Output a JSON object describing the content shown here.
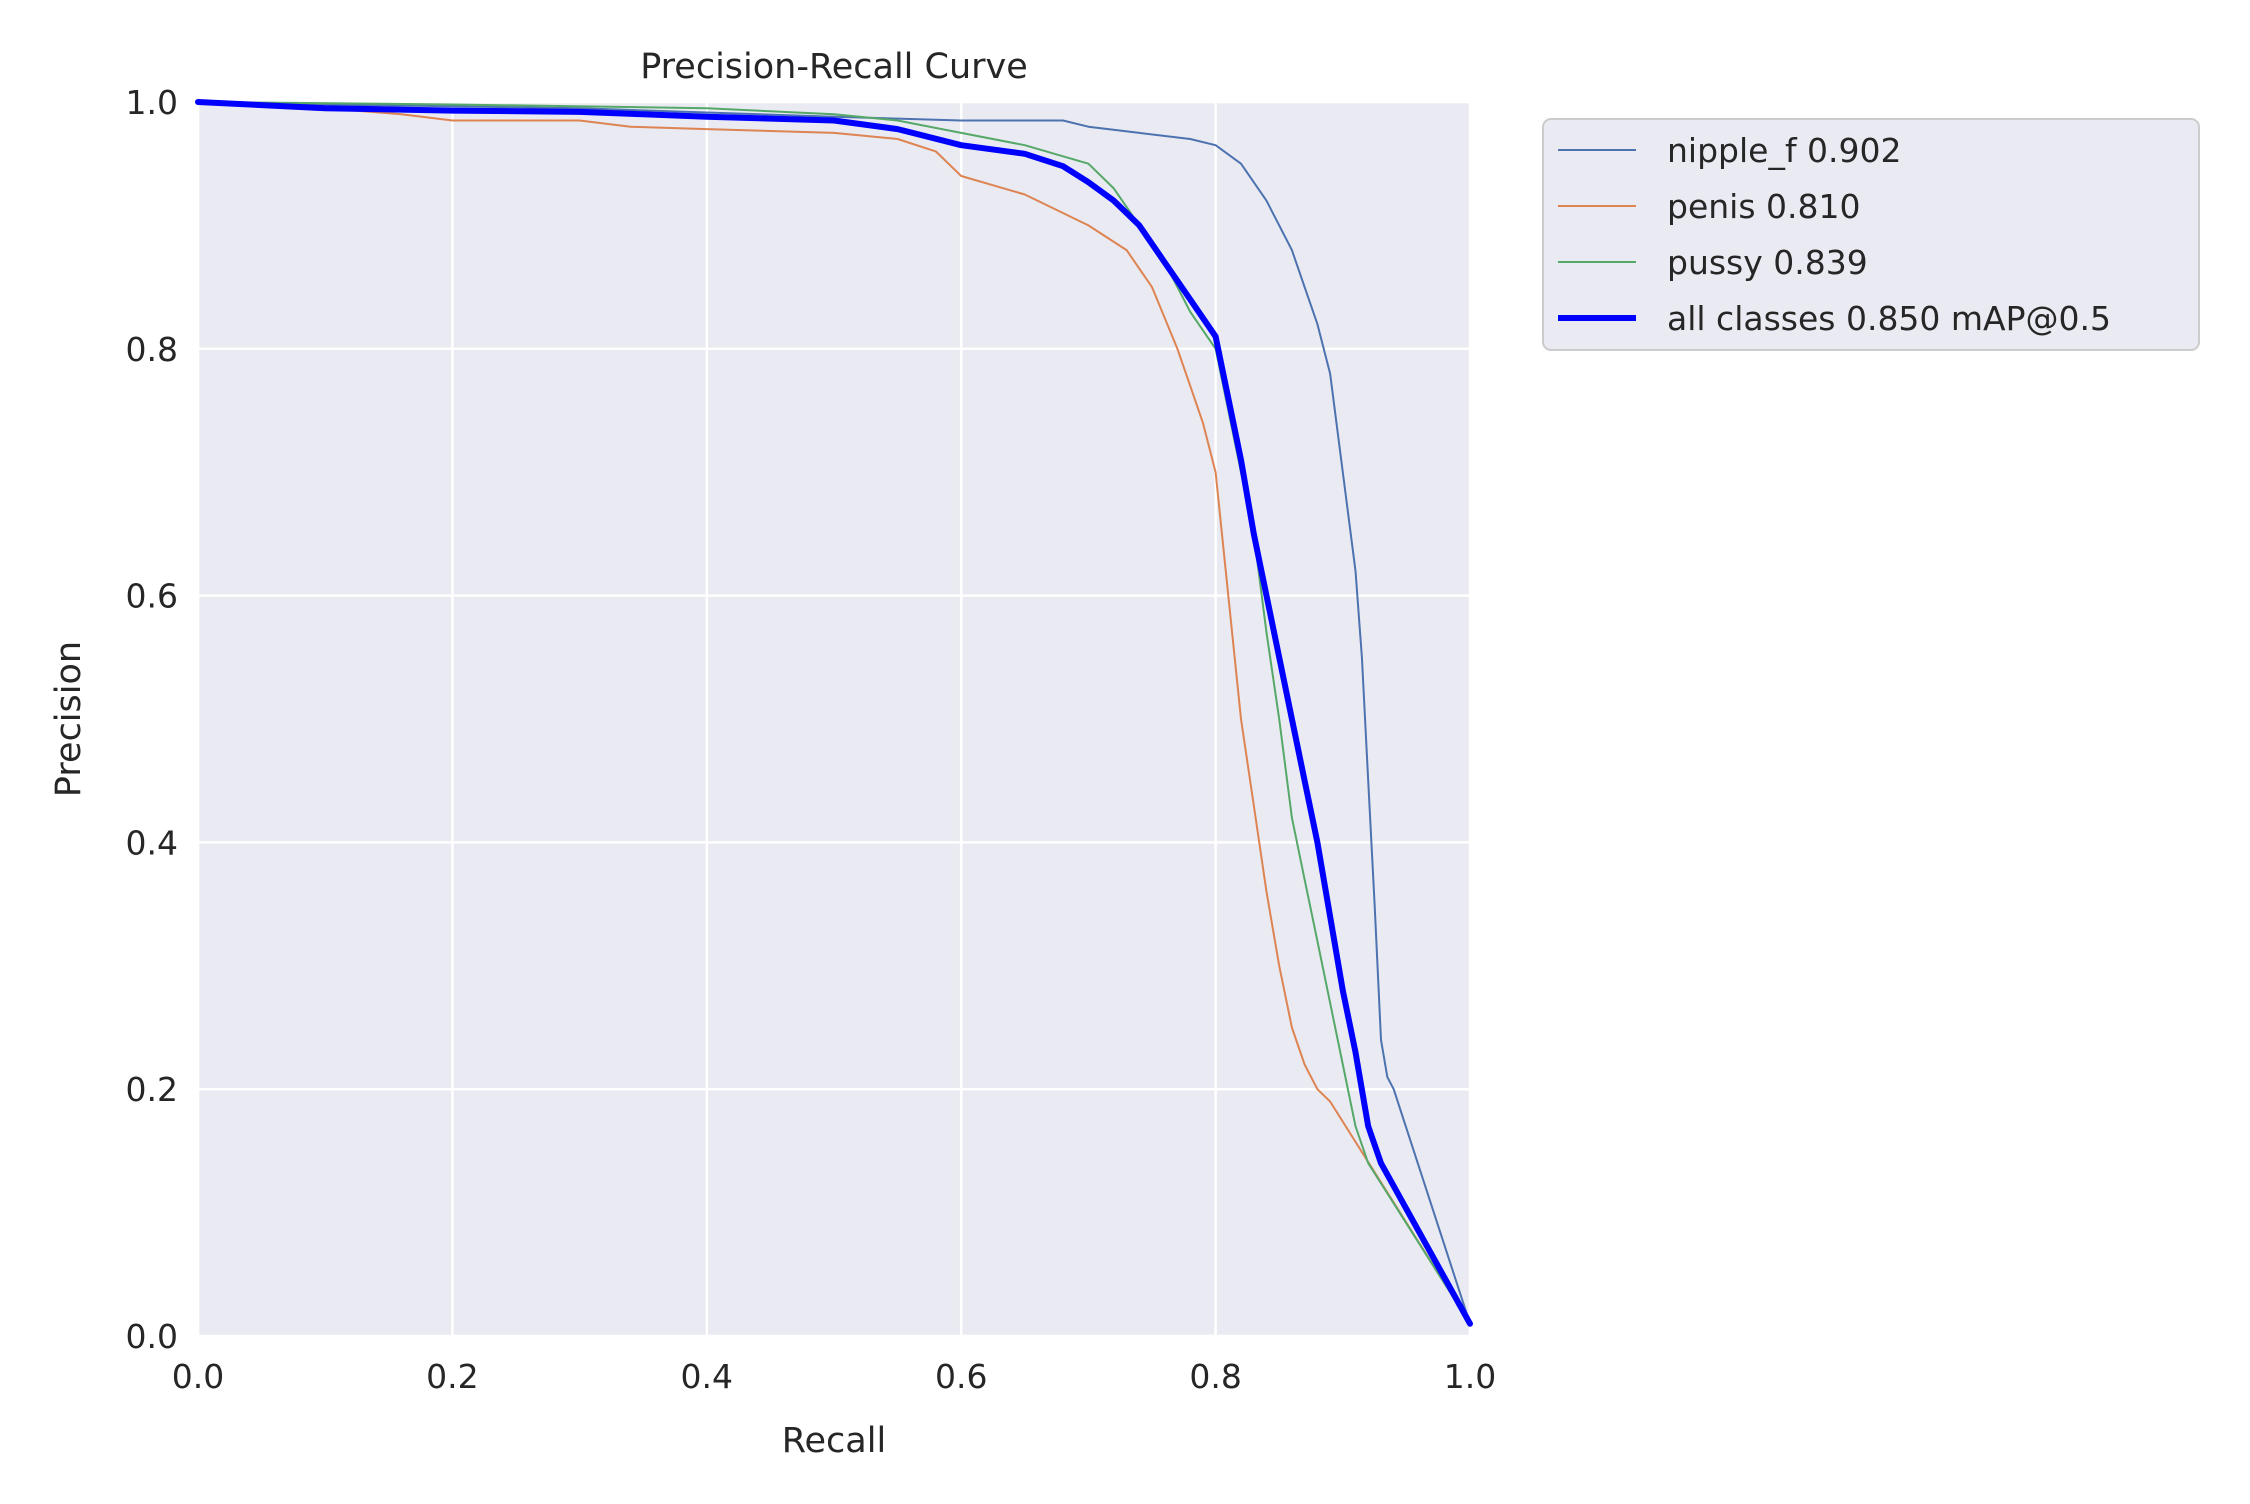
{
  "chart_data": {
    "type": "line",
    "title": "Precision-Recall Curve",
    "xlabel": "Recall",
    "ylabel": "Precision",
    "xlim": [
      0,
      1
    ],
    "ylim": [
      0,
      1
    ],
    "xticks": [
      0.0,
      0.2,
      0.4,
      0.6,
      0.8,
      1.0
    ],
    "yticks": [
      0.0,
      0.2,
      0.4,
      0.6,
      0.8,
      1.0
    ],
    "xtick_labels": [
      "0.0",
      "0.2",
      "0.4",
      "0.6",
      "0.8",
      "1.0"
    ],
    "ytick_labels": [
      "0.0",
      "0.2",
      "0.4",
      "0.6",
      "0.8",
      "1.0"
    ],
    "grid": true,
    "legend_position": "outside-top-right",
    "series": [
      {
        "name": "nipple_f 0.902",
        "color": "#4c72b0",
        "width": 2,
        "x": [
          0.0,
          0.1,
          0.3,
          0.5,
          0.6,
          0.68,
          0.7,
          0.74,
          0.78,
          0.8,
          0.82,
          0.84,
          0.86,
          0.87,
          0.88,
          0.89,
          0.9,
          0.91,
          0.915,
          0.92,
          0.925,
          0.93,
          0.935,
          0.94,
          1.0
        ],
        "y": [
          1.0,
          0.998,
          0.995,
          0.988,
          0.985,
          0.985,
          0.98,
          0.975,
          0.97,
          0.965,
          0.95,
          0.92,
          0.88,
          0.85,
          0.82,
          0.78,
          0.7,
          0.62,
          0.55,
          0.45,
          0.35,
          0.24,
          0.21,
          0.2,
          0.01
        ]
      },
      {
        "name": "penis 0.810",
        "color": "#dd8452",
        "width": 2,
        "x": [
          0.0,
          0.1,
          0.16,
          0.2,
          0.3,
          0.34,
          0.4,
          0.5,
          0.55,
          0.58,
          0.6,
          0.65,
          0.7,
          0.73,
          0.75,
          0.77,
          0.78,
          0.79,
          0.8,
          0.81,
          0.82,
          0.83,
          0.84,
          0.85,
          0.86,
          0.87,
          0.88,
          0.89,
          1.0
        ],
        "y": [
          1.0,
          0.995,
          0.99,
          0.985,
          0.985,
          0.98,
          0.978,
          0.975,
          0.97,
          0.96,
          0.94,
          0.925,
          0.9,
          0.88,
          0.85,
          0.8,
          0.77,
          0.74,
          0.7,
          0.6,
          0.5,
          0.43,
          0.36,
          0.3,
          0.25,
          0.22,
          0.2,
          0.19,
          0.01
        ]
      },
      {
        "name": "pussy 0.839",
        "color": "#55a868",
        "width": 2,
        "x": [
          0.0,
          0.2,
          0.4,
          0.5,
          0.55,
          0.6,
          0.65,
          0.7,
          0.72,
          0.74,
          0.76,
          0.78,
          0.8,
          0.81,
          0.82,
          0.83,
          0.84,
          0.85,
          0.86,
          0.87,
          0.88,
          0.89,
          0.9,
          0.91,
          0.92,
          1.0
        ],
        "y": [
          1.0,
          0.998,
          0.995,
          0.99,
          0.985,
          0.975,
          0.965,
          0.95,
          0.93,
          0.9,
          0.87,
          0.83,
          0.8,
          0.75,
          0.7,
          0.65,
          0.57,
          0.5,
          0.42,
          0.37,
          0.32,
          0.27,
          0.22,
          0.17,
          0.14,
          0.01
        ]
      },
      {
        "name": "all classes 0.850 mAP@0.5",
        "color": "#0000ff",
        "width": 6,
        "x": [
          0.0,
          0.1,
          0.2,
          0.3,
          0.35,
          0.4,
          0.5,
          0.55,
          0.6,
          0.65,
          0.68,
          0.7,
          0.72,
          0.74,
          0.76,
          0.78,
          0.8,
          0.81,
          0.82,
          0.83,
          0.84,
          0.85,
          0.86,
          0.87,
          0.88,
          0.89,
          0.9,
          0.91,
          0.92,
          0.93,
          1.0
        ],
        "y": [
          1.0,
          0.995,
          0.993,
          0.992,
          0.99,
          0.988,
          0.985,
          0.978,
          0.965,
          0.958,
          0.948,
          0.935,
          0.92,
          0.9,
          0.87,
          0.84,
          0.81,
          0.76,
          0.71,
          0.65,
          0.6,
          0.55,
          0.5,
          0.45,
          0.4,
          0.34,
          0.28,
          0.23,
          0.17,
          0.14,
          0.01
        ]
      }
    ]
  }
}
